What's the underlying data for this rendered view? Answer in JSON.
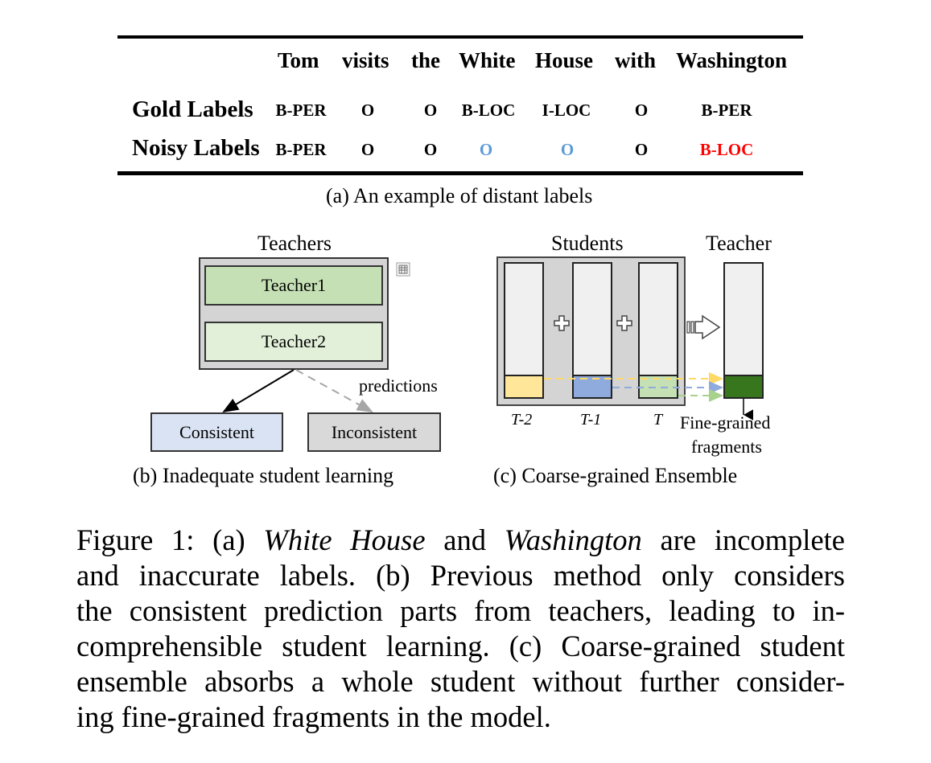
{
  "table": {
    "words": [
      "Tom",
      "visits",
      "the",
      "White",
      "House",
      "with",
      "Washington"
    ],
    "gold": {
      "label": "Gold Labels",
      "tags": [
        "B-PER",
        "O",
        "O",
        "B-LOC",
        "I-LOC",
        "O",
        "B-PER"
      ]
    },
    "noisy": {
      "label": "Noisy Labels",
      "tags": [
        "B-PER",
        "O",
        "O",
        "O",
        "O",
        "O",
        "B-LOC"
      ]
    },
    "colors": {
      "incomplete": "#5b9bd5",
      "inaccurate": "#ff0000"
    },
    "subcaption": "(a) An example of distant labels"
  },
  "panel_b": {
    "title": "Teachers",
    "teacher1": "Teacher1",
    "teacher2": "Teacher2",
    "predictions": "predictions",
    "consistent": "Consistent",
    "inconsistent": "Inconsistent",
    "subcaption": "(b) Inadequate student learning",
    "colors": {
      "teacher1": "#c5e0b4",
      "teacher2": "#e2f0d9",
      "consistent": "#dae3f3",
      "inconsistent": "#d9d9d9"
    }
  },
  "panel_c": {
    "students_title": "Students",
    "teacher_title": "Teacher",
    "labels": [
      "T-2",
      "T-1",
      "T"
    ],
    "fragments_line1": "Fine-grained",
    "fragments_line2": "fragments",
    "subcaption": "(c) Coarse-grained Ensemble",
    "colors": {
      "t2": "#ffe699",
      "t1": "#8faadc",
      "t": "#c5e0b4",
      "teacher": "#38761d"
    }
  },
  "caption": {
    "lines": [
      [
        "Figure 1: (a) ",
        "White House",
        " and ",
        "Washington",
        " are incomplete"
      ],
      [
        "and inaccurate labels. (b) Previous method only considers"
      ],
      [
        "the consistent prediction parts from teachers, leading to in-"
      ],
      [
        "comprehensible student learning. (c) Coarse-grained student"
      ],
      [
        "ensemble absorbs a whole student without further consider-"
      ],
      [
        "ing fine-grained fragments in the model."
      ]
    ]
  }
}
